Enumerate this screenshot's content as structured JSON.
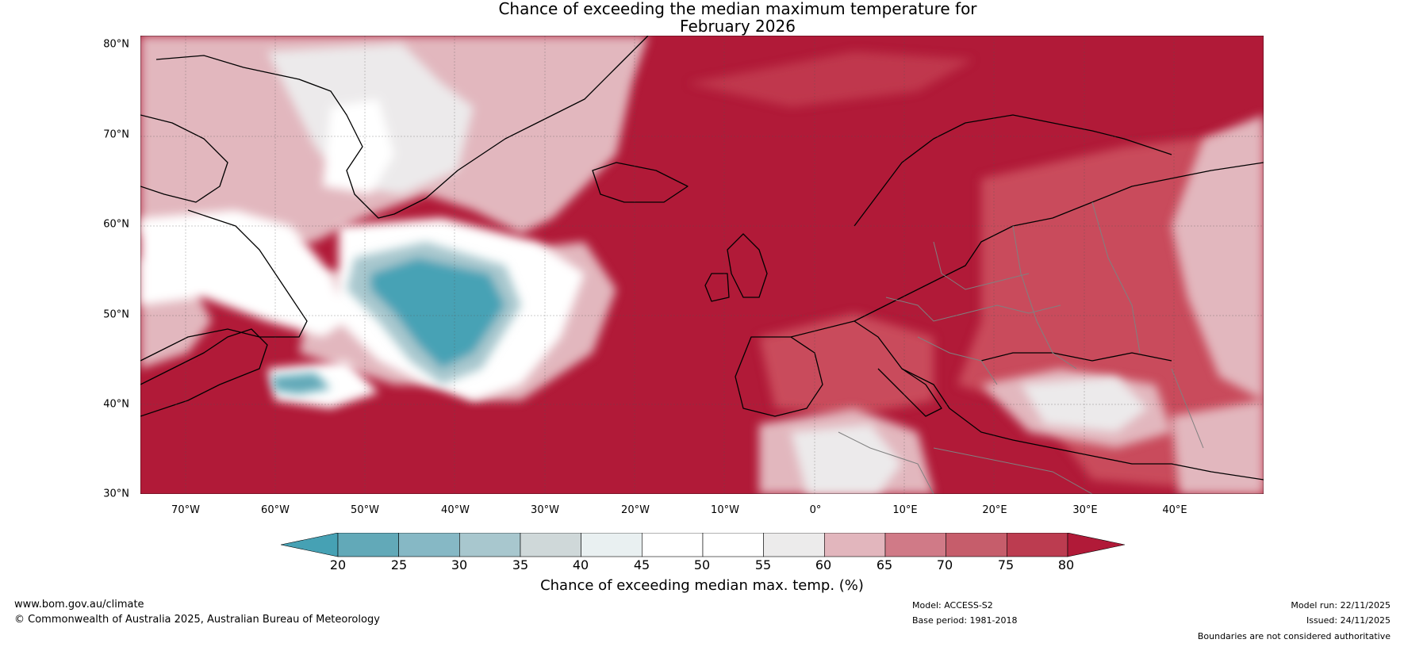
{
  "title": {
    "line1": "Chance of exceeding the median maximum temperature for",
    "line2": "February 2026"
  },
  "map": {
    "latitude_labels": [
      "80°N",
      "70°N",
      "60°N",
      "50°N",
      "40°N",
      "30°N"
    ],
    "longitude_labels": [
      "70°W",
      "60°W",
      "50°W",
      "40°W",
      "30°W",
      "20°W",
      "10°W",
      "0°",
      "10°E",
      "20°E",
      "30°E",
      "40°E"
    ],
    "colors": {
      "high": "#b11a38",
      "mid_high": "#c94b5b",
      "light_pink": "#e2b7be",
      "white": "#ffffff",
      "grey": "#eceaeb",
      "teal": "#47a2b5",
      "land_line": "#000000",
      "border_line": "#808080"
    }
  },
  "colorbar": {
    "ticks": [
      "20",
      "25",
      "30",
      "35",
      "40",
      "45",
      "50",
      "55",
      "60",
      "65",
      "70",
      "75",
      "80"
    ],
    "colors": [
      "#46a1b4",
      "#62a9b8",
      "#86b8c5",
      "#a8c7ce",
      "#cfd8d9",
      "#e9f0f1",
      "#ffffff",
      "#ffffff",
      "#ecebeb",
      "#e2b6bd",
      "#d07a87",
      "#c65d6b",
      "#bc3c50",
      "#b11a38"
    ],
    "title": "Chance of exceeding median max. temp. (%)"
  },
  "footer": {
    "website": "www.bom.gov.au/climate",
    "copyright": "© Commonwealth of Australia 2025, Australian Bureau of Meteorology",
    "model": "Model: ACCESS-S2",
    "base_period": "Base period: 1981-2018",
    "model_run": "Model run: 22/11/2025",
    "issued": "Issued: 24/11/2025",
    "disclaimer": "Boundaries are not considered authoritative"
  }
}
